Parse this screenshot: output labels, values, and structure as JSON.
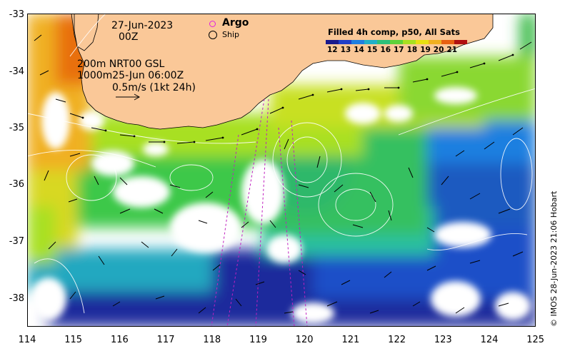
{
  "header": {
    "date": "27-Jun-2023",
    "hour": "00Z"
  },
  "legend": {
    "argo_label": "Argo",
    "ship_label": "Ship"
  },
  "info": {
    "line1": "200m  NRT00 GSL",
    "line2": "1000m25-Jun 06:00Z",
    "scale_label": "0.5m/s (1kt 24h)"
  },
  "colorbar": {
    "title": "Filled 4h comp, p50, All Sats",
    "ticks": [
      "12",
      "13",
      "14",
      "15",
      "16",
      "17",
      "18",
      "19",
      "20",
      "21"
    ],
    "colors": [
      "#1a1a8c",
      "#1f3fc8",
      "#1e7fe0",
      "#20b0c8",
      "#2cc07a",
      "#5ed23a",
      "#a8e020",
      "#e8e010",
      "#f0b020",
      "#e86010",
      "#b01010"
    ]
  },
  "axes": {
    "x_ticks": [
      "114",
      "115",
      "116",
      "117",
      "118",
      "119",
      "120",
      "121",
      "122",
      "123",
      "124",
      "125"
    ],
    "y_ticks": [
      "-33",
      "-34",
      "-35",
      "-36",
      "-37",
      "-38"
    ],
    "lon_range": [
      114,
      125
    ],
    "lat_range": [
      -38.5,
      -33
    ]
  },
  "credit": "© IMOS 28-Jun-2023 21:06 Hobart",
  "colors": {
    "land": "#fac898",
    "no_data": "#ffffff",
    "argo": "#e020e0",
    "track": "#c020c0"
  }
}
